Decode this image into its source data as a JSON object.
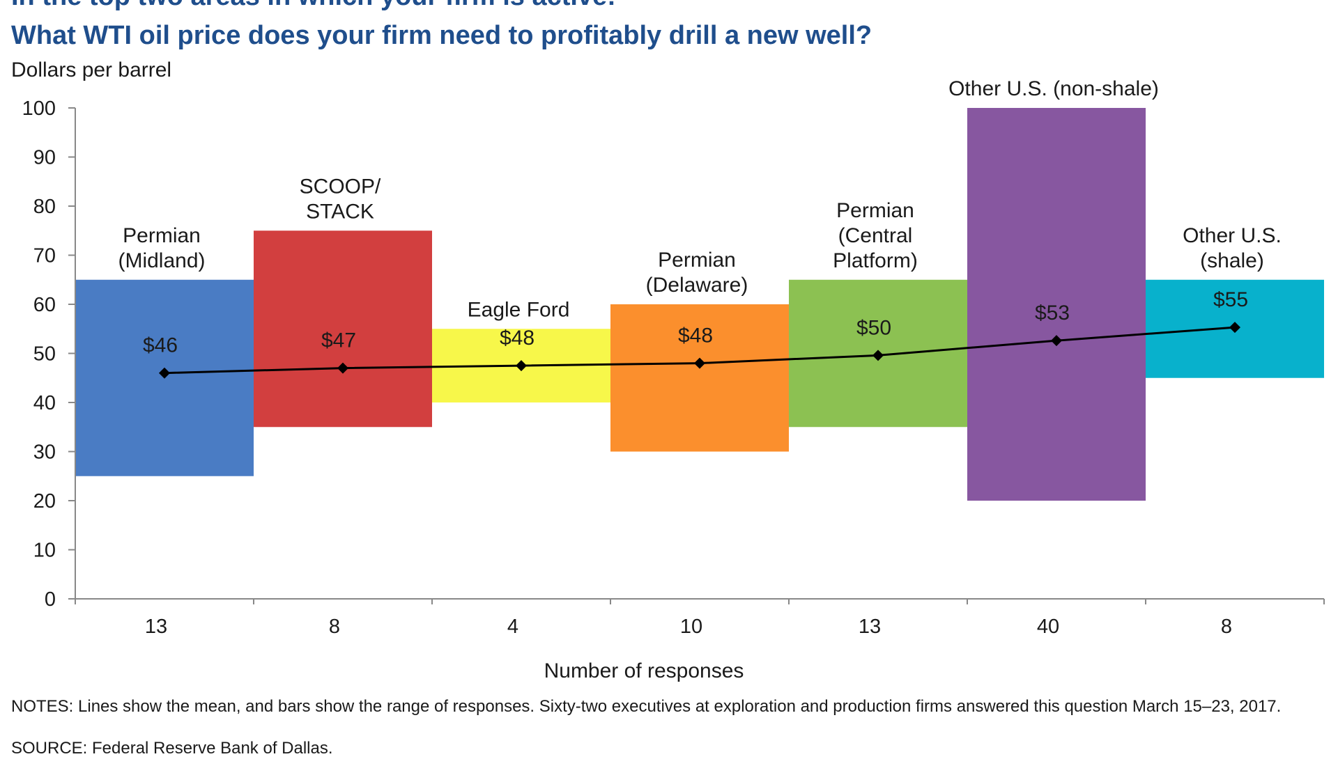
{
  "header": {
    "title_line1": "In the top two areas in which your firm is active:",
    "title_line2": "What WTI oil price does your firm need to profitably drill a new well?"
  },
  "footer": {
    "notes": "NOTES: Lines show the mean, and bars show the range of responses. Sixty-two executives at exploration and production firms answered this question March 15–23, 2017.",
    "source": "SOURCE: Federal Reserve Bank of Dallas."
  },
  "chart_data": {
    "type": "bar",
    "ylabel": "Dollars per barrel",
    "xlabel": "Number of responses",
    "ylim": [
      0,
      100
    ],
    "yticks": [
      0,
      10,
      20,
      30,
      40,
      50,
      60,
      70,
      80,
      90,
      100
    ],
    "grid": false,
    "categories": [
      {
        "name": "Permian (Midland)",
        "name_lines": [
          "Permian",
          "(Midland)"
        ],
        "responses": "13",
        "low": 25,
        "high": 65,
        "mean": 46,
        "mean_label": "$46",
        "color": "#4a7cc4"
      },
      {
        "name": "SCOOP/ STACK",
        "name_lines": [
          "SCOOP/",
          "STACK"
        ],
        "responses": "8",
        "low": 35,
        "high": 75,
        "mean": 47,
        "mean_label": "$47",
        "color": "#d23f3f"
      },
      {
        "name": "Eagle Ford",
        "name_lines": [
          "Eagle Ford"
        ],
        "responses": "4",
        "low": 40,
        "high": 55,
        "mean": 47.5,
        "mean_label": "$48",
        "color": "#f7f74a"
      },
      {
        "name": "Permian (Delaware)",
        "name_lines": [
          "Permian",
          "(Delaware)"
        ],
        "responses": "10",
        "low": 30,
        "high": 60,
        "mean": 48,
        "mean_label": "$48",
        "color": "#fb8f2d"
      },
      {
        "name": "Permian (Central Platform)",
        "name_lines": [
          "Permian",
          "(Central",
          "Platform)"
        ],
        "responses": "13",
        "low": 35,
        "high": 65,
        "mean": 49.6,
        "mean_label": "$50",
        "color": "#8cc152"
      },
      {
        "name": "Other U.S. (non-shale)",
        "name_lines": [
          "Other U.S. (non-shale)"
        ],
        "responses": "40",
        "low": 20,
        "high": 100,
        "mean": 52.6,
        "mean_label": "$53",
        "color": "#8757a0"
      },
      {
        "name": "Other U.S. (shale)",
        "name_lines": [
          "Other U.S.",
          "(shale)"
        ],
        "responses": "8",
        "low": 45,
        "high": 65,
        "mean": 55.3,
        "mean_label": "$55",
        "color": "#08b1cc"
      }
    ],
    "line_color": "#000000"
  }
}
